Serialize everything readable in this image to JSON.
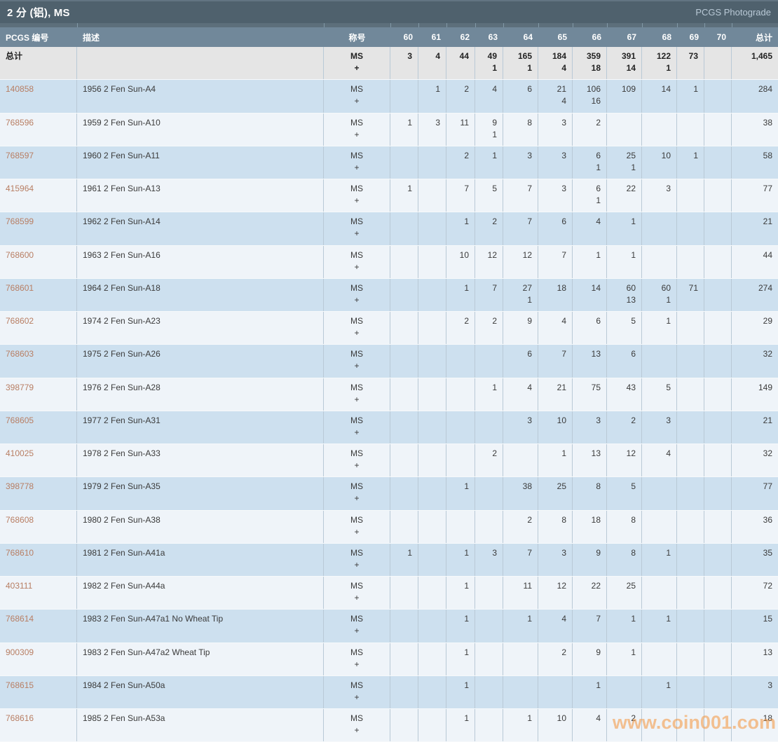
{
  "title_bar": {
    "title": "2 分 (铝), MS",
    "photograde_link": "PCGS Photograde"
  },
  "watermark": "www.coin001.com",
  "colors": {
    "title_bar": "#4f616d",
    "header_row": "#71889a",
    "row_blue": "#cde0ef",
    "row_light": "#eff4f9",
    "totals_row_bg": "#e5e5e5",
    "pcgs_link": "#b87e63",
    "watermark_orange": "#f4943a"
  },
  "table": {
    "columns": {
      "pcgs_no": "PCGS 编号",
      "description": "描述",
      "designation": "称号",
      "grades": [
        "60",
        "61",
        "62",
        "63",
        "64",
        "65",
        "66",
        "67",
        "68",
        "69",
        "70"
      ],
      "total": "总计"
    },
    "designation_ms": "MS",
    "designation_plus": "+",
    "totals_row": {
      "label": "总计",
      "cells": [
        [
          "3",
          ""
        ],
        [
          "4",
          ""
        ],
        [
          "44",
          ""
        ],
        [
          "49",
          "1"
        ],
        [
          "165",
          "1"
        ],
        [
          "184",
          "4"
        ],
        [
          "359",
          "18"
        ],
        [
          "391",
          "14"
        ],
        [
          "122",
          "1"
        ],
        [
          "73",
          ""
        ],
        [
          "",
          ""
        ]
      ],
      "total": "1,465"
    },
    "rows": [
      {
        "pcgs_no": "140858",
        "description": "1956 2 Fen Sun-A4",
        "cells": [
          [
            "",
            ""
          ],
          [
            "1",
            ""
          ],
          [
            "2",
            ""
          ],
          [
            "4",
            ""
          ],
          [
            "6",
            ""
          ],
          [
            "21",
            "4"
          ],
          [
            "106",
            "16"
          ],
          [
            "109",
            ""
          ],
          [
            "14",
            ""
          ],
          [
            "1",
            ""
          ],
          [
            "",
            ""
          ]
        ],
        "total": "284"
      },
      {
        "pcgs_no": "768596",
        "description": "1959 2 Fen Sun-A10",
        "cells": [
          [
            "1",
            ""
          ],
          [
            "3",
            ""
          ],
          [
            "11",
            ""
          ],
          [
            "9",
            "1"
          ],
          [
            "8",
            ""
          ],
          [
            "3",
            ""
          ],
          [
            "2",
            ""
          ],
          [
            "",
            ""
          ],
          [
            "",
            ""
          ],
          [
            "",
            ""
          ],
          [
            "",
            ""
          ]
        ],
        "total": "38"
      },
      {
        "pcgs_no": "768597",
        "description": "1960 2 Fen Sun-A11",
        "cells": [
          [
            "",
            ""
          ],
          [
            "",
            ""
          ],
          [
            "2",
            ""
          ],
          [
            "1",
            ""
          ],
          [
            "3",
            ""
          ],
          [
            "3",
            ""
          ],
          [
            "6",
            "1"
          ],
          [
            "25",
            "1"
          ],
          [
            "10",
            ""
          ],
          [
            "1",
            ""
          ],
          [
            "",
            ""
          ]
        ],
        "total": "58"
      },
      {
        "pcgs_no": "415964",
        "description": "1961 2 Fen Sun-A13",
        "cells": [
          [
            "1",
            ""
          ],
          [
            "",
            ""
          ],
          [
            "7",
            ""
          ],
          [
            "5",
            ""
          ],
          [
            "7",
            ""
          ],
          [
            "3",
            ""
          ],
          [
            "6",
            "1"
          ],
          [
            "22",
            ""
          ],
          [
            "3",
            ""
          ],
          [
            "",
            ""
          ],
          [
            "",
            ""
          ]
        ],
        "total": "77"
      },
      {
        "pcgs_no": "768599",
        "description": "1962 2 Fen Sun-A14",
        "cells": [
          [
            "",
            ""
          ],
          [
            "",
            ""
          ],
          [
            "1",
            ""
          ],
          [
            "2",
            ""
          ],
          [
            "7",
            ""
          ],
          [
            "6",
            ""
          ],
          [
            "4",
            ""
          ],
          [
            "1",
            ""
          ],
          [
            "",
            ""
          ],
          [
            "",
            ""
          ],
          [
            "",
            ""
          ]
        ],
        "total": "21"
      },
      {
        "pcgs_no": "768600",
        "description": "1963 2 Fen Sun-A16",
        "cells": [
          [
            "",
            ""
          ],
          [
            "",
            ""
          ],
          [
            "10",
            ""
          ],
          [
            "12",
            ""
          ],
          [
            "12",
            ""
          ],
          [
            "7",
            ""
          ],
          [
            "1",
            ""
          ],
          [
            "1",
            ""
          ],
          [
            "",
            ""
          ],
          [
            "",
            ""
          ],
          [
            "",
            ""
          ]
        ],
        "total": "44"
      },
      {
        "pcgs_no": "768601",
        "description": "1964 2 Fen Sun-A18",
        "cells": [
          [
            "",
            ""
          ],
          [
            "",
            ""
          ],
          [
            "1",
            ""
          ],
          [
            "7",
            ""
          ],
          [
            "27",
            "1"
          ],
          [
            "18",
            ""
          ],
          [
            "14",
            ""
          ],
          [
            "60",
            "13"
          ],
          [
            "60",
            "1"
          ],
          [
            "71",
            ""
          ],
          [
            "",
            ""
          ]
        ],
        "total": "274"
      },
      {
        "pcgs_no": "768602",
        "description": "1974 2 Fen Sun-A23",
        "cells": [
          [
            "",
            ""
          ],
          [
            "",
            ""
          ],
          [
            "2",
            ""
          ],
          [
            "2",
            ""
          ],
          [
            "9",
            ""
          ],
          [
            "4",
            ""
          ],
          [
            "6",
            ""
          ],
          [
            "5",
            ""
          ],
          [
            "1",
            ""
          ],
          [
            "",
            ""
          ],
          [
            "",
            ""
          ]
        ],
        "total": "29"
      },
      {
        "pcgs_no": "768603",
        "description": "1975 2 Fen Sun-A26",
        "cells": [
          [
            "",
            ""
          ],
          [
            "",
            ""
          ],
          [
            "",
            ""
          ],
          [
            "",
            ""
          ],
          [
            "6",
            ""
          ],
          [
            "7",
            ""
          ],
          [
            "13",
            ""
          ],
          [
            "6",
            ""
          ],
          [
            "",
            ""
          ],
          [
            "",
            ""
          ],
          [
            "",
            ""
          ]
        ],
        "total": "32"
      },
      {
        "pcgs_no": "398779",
        "description": "1976 2 Fen Sun-A28",
        "cells": [
          [
            "",
            ""
          ],
          [
            "",
            ""
          ],
          [
            "",
            ""
          ],
          [
            "1",
            ""
          ],
          [
            "4",
            ""
          ],
          [
            "21",
            ""
          ],
          [
            "75",
            ""
          ],
          [
            "43",
            ""
          ],
          [
            "5",
            ""
          ],
          [
            "",
            ""
          ],
          [
            "",
            ""
          ]
        ],
        "total": "149"
      },
      {
        "pcgs_no": "768605",
        "description": "1977 2 Fen Sun-A31",
        "cells": [
          [
            "",
            ""
          ],
          [
            "",
            ""
          ],
          [
            "",
            ""
          ],
          [
            "",
            ""
          ],
          [
            "3",
            ""
          ],
          [
            "10",
            ""
          ],
          [
            "3",
            ""
          ],
          [
            "2",
            ""
          ],
          [
            "3",
            ""
          ],
          [
            "",
            ""
          ],
          [
            "",
            ""
          ]
        ],
        "total": "21"
      },
      {
        "pcgs_no": "410025",
        "description": "1978 2 Fen Sun-A33",
        "cells": [
          [
            "",
            ""
          ],
          [
            "",
            ""
          ],
          [
            "",
            ""
          ],
          [
            "2",
            ""
          ],
          [
            "",
            ""
          ],
          [
            "1",
            ""
          ],
          [
            "13",
            ""
          ],
          [
            "12",
            ""
          ],
          [
            "4",
            ""
          ],
          [
            "",
            ""
          ],
          [
            "",
            ""
          ]
        ],
        "total": "32"
      },
      {
        "pcgs_no": "398778",
        "description": "1979 2 Fen Sun-A35",
        "cells": [
          [
            "",
            ""
          ],
          [
            "",
            ""
          ],
          [
            "1",
            ""
          ],
          [
            "",
            ""
          ],
          [
            "38",
            ""
          ],
          [
            "25",
            ""
          ],
          [
            "8",
            ""
          ],
          [
            "5",
            ""
          ],
          [
            "",
            ""
          ],
          [
            "",
            ""
          ],
          [
            "",
            ""
          ]
        ],
        "total": "77"
      },
      {
        "pcgs_no": "768608",
        "description": "1980 2 Fen Sun-A38",
        "cells": [
          [
            "",
            ""
          ],
          [
            "",
            ""
          ],
          [
            "",
            ""
          ],
          [
            "",
            ""
          ],
          [
            "2",
            ""
          ],
          [
            "8",
            ""
          ],
          [
            "18",
            ""
          ],
          [
            "8",
            ""
          ],
          [
            "",
            ""
          ],
          [
            "",
            ""
          ],
          [
            "",
            ""
          ]
        ],
        "total": "36"
      },
      {
        "pcgs_no": "768610",
        "description": "1981 2 Fen Sun-A41a",
        "cells": [
          [
            "1",
            ""
          ],
          [
            "",
            ""
          ],
          [
            "1",
            ""
          ],
          [
            "3",
            ""
          ],
          [
            "7",
            ""
          ],
          [
            "3",
            ""
          ],
          [
            "9",
            ""
          ],
          [
            "8",
            ""
          ],
          [
            "1",
            ""
          ],
          [
            "",
            ""
          ],
          [
            "",
            ""
          ]
        ],
        "total": "35"
      },
      {
        "pcgs_no": "403111",
        "description": "1982 2 Fen Sun-A44a",
        "cells": [
          [
            "",
            ""
          ],
          [
            "",
            ""
          ],
          [
            "1",
            ""
          ],
          [
            "",
            ""
          ],
          [
            "11",
            ""
          ],
          [
            "12",
            ""
          ],
          [
            "22",
            ""
          ],
          [
            "25",
            ""
          ],
          [
            "",
            ""
          ],
          [
            "",
            ""
          ],
          [
            "",
            ""
          ]
        ],
        "total": "72"
      },
      {
        "pcgs_no": "768614",
        "description": "1983 2 Fen Sun-A47a1 No Wheat Tip",
        "cells": [
          [
            "",
            ""
          ],
          [
            "",
            ""
          ],
          [
            "1",
            ""
          ],
          [
            "",
            ""
          ],
          [
            "1",
            ""
          ],
          [
            "4",
            ""
          ],
          [
            "7",
            ""
          ],
          [
            "1",
            ""
          ],
          [
            "1",
            ""
          ],
          [
            "",
            ""
          ],
          [
            "",
            ""
          ]
        ],
        "total": "15"
      },
      {
        "pcgs_no": "900309",
        "description": "1983 2 Fen Sun-A47a2 Wheat Tip",
        "cells": [
          [
            "",
            ""
          ],
          [
            "",
            ""
          ],
          [
            "1",
            ""
          ],
          [
            "",
            ""
          ],
          [
            "",
            ""
          ],
          [
            "2",
            ""
          ],
          [
            "9",
            ""
          ],
          [
            "1",
            ""
          ],
          [
            "",
            ""
          ],
          [
            "",
            ""
          ],
          [
            "",
            ""
          ]
        ],
        "total": "13"
      },
      {
        "pcgs_no": "768615",
        "description": "1984 2 Fen Sun-A50a",
        "cells": [
          [
            "",
            ""
          ],
          [
            "",
            ""
          ],
          [
            "1",
            ""
          ],
          [
            "",
            ""
          ],
          [
            "",
            ""
          ],
          [
            "",
            ""
          ],
          [
            "1",
            ""
          ],
          [
            "",
            ""
          ],
          [
            "1",
            ""
          ],
          [
            "",
            ""
          ],
          [
            "",
            ""
          ]
        ],
        "total": "3"
      },
      {
        "pcgs_no": "768616",
        "description": "1985 2 Fen Sun-A53a",
        "cells": [
          [
            "",
            ""
          ],
          [
            "",
            ""
          ],
          [
            "1",
            ""
          ],
          [
            "",
            ""
          ],
          [
            "1",
            ""
          ],
          [
            "10",
            ""
          ],
          [
            "4",
            ""
          ],
          [
            "2",
            ""
          ],
          [
            "",
            ""
          ],
          [
            "",
            ""
          ],
          [
            "",
            ""
          ]
        ],
        "total": "18"
      }
    ]
  }
}
